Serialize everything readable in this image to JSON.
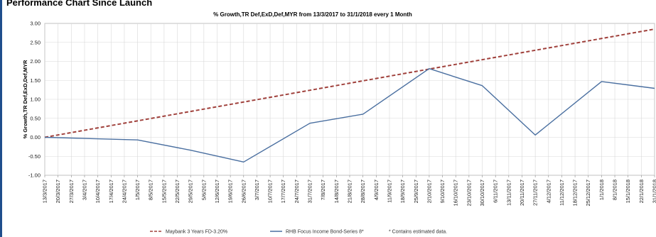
{
  "heading": "Performance Chart Since Launch",
  "chart_data": {
    "type": "line",
    "title": "% Growth,TR Def,ExD,Def,MYR from 13/3/2017 to 31/1/2018 every 1 Month",
    "ylabel": "% Growth,TR Def,ExD,Def,MYR",
    "xlabel": "",
    "ylim": [
      -1.0,
      3.0
    ],
    "yticks": [
      "3.00",
      "2.50",
      "2.00",
      "1.50",
      "1.00",
      "0.50",
      "0.00",
      "-0.50",
      "-1.00"
    ],
    "x": [
      "13/3/2017",
      "20/3/2017",
      "27/3/2017",
      "3/4/2017",
      "10/4/2017",
      "17/4/2017",
      "24/4/2017",
      "1/5/2017",
      "8/5/2017",
      "15/5/2017",
      "22/5/2017",
      "29/5/2017",
      "5/6/2017",
      "12/6/2017",
      "19/6/2017",
      "26/6/2017",
      "3/7/2017",
      "10/7/2017",
      "17/7/2017",
      "24/7/2017",
      "31/7/2017",
      "7/8/2017",
      "14/8/2017",
      "21/8/2017",
      "28/8/2017",
      "4/9/2017",
      "11/9/2017",
      "18/9/2017",
      "25/9/2017",
      "2/10/2017",
      "9/10/2017",
      "16/10/2017",
      "23/10/2017",
      "30/10/2017",
      "6/11/2017",
      "13/11/2017",
      "20/11/2017",
      "27/11/2017",
      "4/12/2017",
      "11/12/2017",
      "18/12/2017",
      "25/12/2017",
      "1/1/2018",
      "8/1/2018",
      "15/1/2018",
      "22/1/2018",
      "31/1/2018"
    ],
    "grid": true,
    "legend_position": "bottom",
    "series": [
      {
        "name": "Maybank 3 Years FD-3.20%",
        "style": "dashed",
        "color": "#a0413c",
        "points": [
          [
            0,
            0.0
          ],
          [
            46,
            2.85
          ]
        ]
      },
      {
        "name": "RHB Focus Income Bond-Series 8*",
        "style": "solid",
        "color": "#4a6fa0",
        "points": [
          [
            0,
            0.0
          ],
          [
            7,
            -0.07
          ],
          [
            11,
            -0.34
          ],
          [
            15,
            -0.65
          ],
          [
            20,
            0.37
          ],
          [
            24,
            0.61
          ],
          [
            29,
            1.81
          ],
          [
            33,
            1.36
          ],
          [
            37,
            0.06
          ],
          [
            42,
            1.47
          ],
          [
            46,
            1.29
          ]
        ]
      }
    ],
    "footnote": "* Contains estimated data."
  }
}
